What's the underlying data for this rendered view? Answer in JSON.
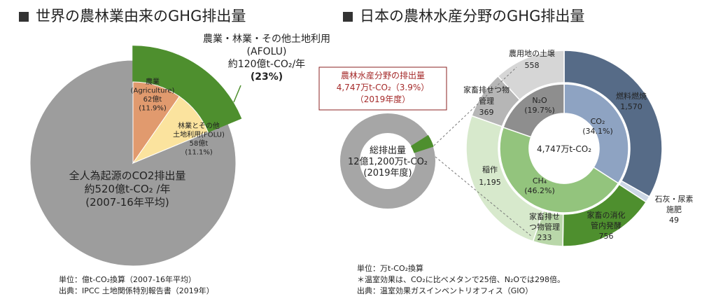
{
  "left": {
    "title": "世界の農林業由来のGHG排出量",
    "afolu_label": [
      "農業・林業・その他土地利用",
      "(AFOLU)",
      "約120億t-CO₂/年",
      "(23%)"
    ],
    "units": "単位：億t-CO₂換算（2007-16年平均）",
    "source": "出典：IPCC 土地関係特別報告書（2019年）"
  },
  "right": {
    "title": "日本の農林水産分野のGHG排出量",
    "callout": [
      "農林水産分野の排出量",
      "4,747万t-CO₂（3.9%）",
      "（2019年度）"
    ],
    "units": "単位：万t-CO₂換算",
    "note": "＊温室効果は、CO₂に比べメタンで25倍、N₂Oでは298倍。",
    "source": "出典：温室効果ガスインベントリオフィス（GIO）"
  },
  "chart_data": [
    {
      "type": "pie",
      "title": "世界の農林業由来のGHG排出量",
      "unit": "億t-CO₂換算",
      "slices": [
        {
          "name": "全人為起源のCO2排出量",
          "value": 520,
          "percent": 77,
          "label_lines": [
            "全人為起源のCO2排出量",
            "約520億t-CO₂ /年",
            "(2007-16年平均)"
          ],
          "color": "#9d9d9d"
        },
        {
          "name": "農業(Agriculture)",
          "value": 62,
          "percent": 11.9,
          "label_lines": [
            "農業",
            "(Agriculture)",
            "62億t",
            "(11.9%)"
          ],
          "color": "#e19a6e"
        },
        {
          "name": "林業とその他土地利用(FOLU)",
          "value": 58,
          "percent": 11.1,
          "label_lines": [
            "林業とその他",
            "土地利用(FOLU)",
            "58億t",
            "(11.1%)"
          ],
          "color": "#fbe39e"
        }
      ],
      "highlight": {
        "name": "AFOLU",
        "value": 120,
        "percent": 23,
        "color": "#4e8f2e"
      }
    },
    {
      "type": "pie",
      "title": "総排出量",
      "center_label": [
        "総排出量",
        "12億1,200万t-CO₂",
        "(2019年度)"
      ],
      "total": 121200,
      "highlight_percent": 3.9,
      "colors": {
        "rest": "#a6a6a6",
        "highlight": "#4e8f2e"
      }
    },
    {
      "type": "pie",
      "title": "日本の農林水産分野のGHG排出量",
      "unit": "万t-CO₂換算",
      "total": 4747,
      "center_label": "4,747万t-CO₂",
      "inner": [
        {
          "name": "CO₂",
          "percent": 34.1,
          "label_lines": [
            "CO₂",
            "(34.1%)"
          ],
          "color": "#8ea3c2"
        },
        {
          "name": "CH₄",
          "percent": 46.2,
          "label_lines": [
            "CH₄",
            "(46.2%)"
          ],
          "color": "#93c47d"
        },
        {
          "name": "N₂O",
          "percent": 19.7,
          "label_lines": [
            "N₂O",
            "(19.7%)"
          ],
          "color": "#8e8e8e"
        }
      ],
      "outer": [
        {
          "name": "燃料燃焼",
          "value": 1570,
          "label_lines": [
            "燃料燃焼",
            "1,570"
          ],
          "color": "#566b87"
        },
        {
          "name": "石灰・尿素施肥",
          "value": 49,
          "label_lines": [
            "石灰・尿素",
            "施肥",
            "49"
          ],
          "color": "#ccd7e5"
        },
        {
          "name": "家畜の消化管内発酵",
          "value": 756,
          "label_lines": [
            "家畜の消化",
            "管内発酵",
            "756"
          ],
          "color": "#4e8f2e"
        },
        {
          "name": "家畜排せつ物管理",
          "value": 233,
          "label_lines": [
            "家畜排せ",
            "つ物管理",
            "233"
          ],
          "color": "#b9d7a9"
        },
        {
          "name": "稲作",
          "value": 1195,
          "label_lines": [
            "稲作",
            "1,195"
          ],
          "color": "#d7e9cc"
        },
        {
          "name": "家畜排せつ物管理",
          "value": 369,
          "label_lines": [
            "家畜排せつ物",
            "管理",
            "369"
          ],
          "color": "#b6b6b6"
        },
        {
          "name": "農用地の土壌",
          "value": 558,
          "label_lines": [
            "農用地の土壌",
            "558"
          ],
          "color": "#d6d6d6"
        }
      ]
    }
  ]
}
